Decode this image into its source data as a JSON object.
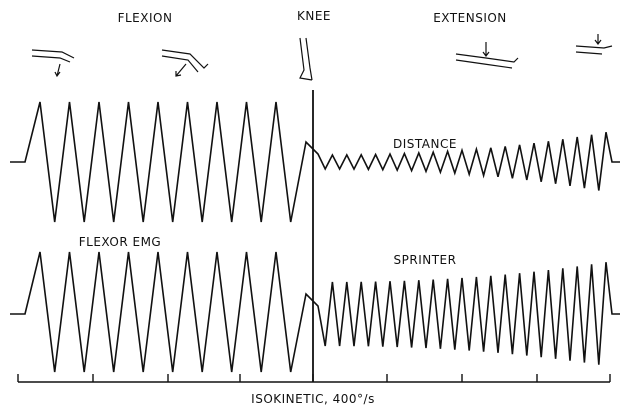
{
  "header": {
    "left": "FLEXION",
    "center": "KNEE",
    "right": "EXTENSION"
  },
  "traces": {
    "top_label": "DISTANCE",
    "bottom_left_label": "FLEXOR EMG",
    "bottom_right_label": "SPRINTER"
  },
  "footer": {
    "caption": "ISOKINETIC, 400°/s"
  }
}
